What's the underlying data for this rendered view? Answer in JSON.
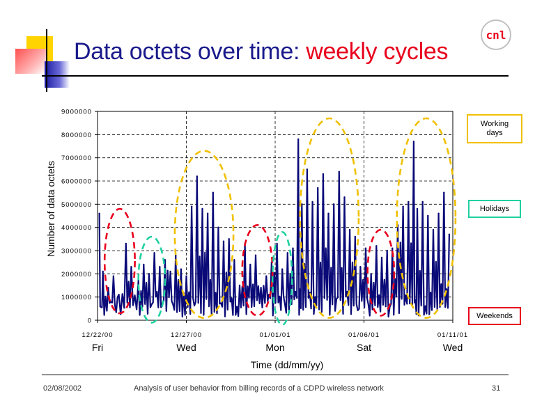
{
  "slide": {
    "title_main": "Data octets over time: ",
    "title_accent": "weekly cycles",
    "logo_text": "cnl",
    "footer": {
      "date": "02/08/2002",
      "caption": "Analysis of user behavior from billing records of a CDPD wireless network",
      "page_number": "31"
    }
  },
  "colors": {
    "title": "#1a1a8c",
    "accent": "#e8001c",
    "series": "#0a0a78",
    "working_days": "#f0c000",
    "holidays": "#20d0a0",
    "weekends": "#e8001c"
  },
  "legend": [
    {
      "key": "working",
      "label": "Working days",
      "color": "#f0c000"
    },
    {
      "key": "holidays",
      "label": "Holidays",
      "color": "#20d0a0"
    },
    {
      "key": "weekends",
      "label": "Weekends",
      "color": "#e8001c"
    }
  ],
  "chart_data": {
    "type": "line",
    "title": "",
    "xlabel": "Time (dd/mm/yy)",
    "ylabel": "Number of data octets",
    "ylim": [
      0,
      9000000
    ],
    "yticks": [
      "0",
      "1000000",
      "2000000",
      "3000000",
      "4000000",
      "5000000",
      "6000000",
      "7000000",
      "8000000",
      "9000000"
    ],
    "xlim_days": [
      0,
      20
    ],
    "xticks": [
      {
        "date": "12/22/00",
        "day": "Fri"
      },
      {
        "date": "12/27/00",
        "day": "Wed"
      },
      {
        "date": "01/01/01",
        "day": "Mon"
      },
      {
        "date": "01/06/01",
        "day": "Sat"
      },
      {
        "date": "01/11/01",
        "day": "Wed"
      }
    ],
    "grid": true,
    "series": [
      {
        "peaks": [
          [
            0.1,
            4600000
          ],
          [
            0.3,
            2100000
          ],
          [
            0.6,
            1400000
          ],
          [
            0.9,
            1900000
          ],
          [
            1.2,
            1100000
          ],
          [
            1.6,
            3300000
          ],
          [
            1.9,
            2300000
          ],
          [
            2.3,
            1700000
          ],
          [
            2.6,
            2400000
          ],
          [
            2.9,
            2000000
          ],
          [
            3.2,
            2900000
          ],
          [
            3.5,
            2300000
          ],
          [
            3.8,
            2600000
          ],
          [
            4.1,
            2100000
          ],
          [
            4.4,
            2800000
          ],
          [
            4.7,
            2200000
          ],
          [
            5.0,
            1900000
          ],
          [
            5.3,
            4900000
          ],
          [
            5.6,
            6200000
          ],
          [
            5.9,
            4800000
          ],
          [
            6.2,
            4600000
          ],
          [
            6.5,
            5500000
          ],
          [
            6.8,
            4000000
          ],
          [
            7.1,
            3400000
          ],
          [
            7.4,
            3500000
          ],
          [
            7.7,
            2600000
          ],
          [
            8.0,
            1500000
          ],
          [
            8.3,
            3300000
          ],
          [
            8.6,
            2400000
          ],
          [
            8.9,
            2800000
          ],
          [
            9.2,
            1400000
          ],
          [
            9.5,
            1900000
          ],
          [
            9.8,
            2500000
          ],
          [
            10.1,
            3300000
          ],
          [
            10.4,
            2200000
          ],
          [
            10.7,
            2900000
          ],
          [
            11.0,
            3100000
          ],
          [
            11.3,
            7800000
          ],
          [
            11.5,
            5000000
          ],
          [
            11.8,
            6500000
          ],
          [
            12.1,
            5100000
          ],
          [
            12.4,
            5700000
          ],
          [
            12.7,
            6300000
          ],
          [
            13.0,
            4600000
          ],
          [
            13.3,
            5000000
          ],
          [
            13.6,
            6400000
          ],
          [
            13.9,
            5300000
          ],
          [
            14.2,
            3900000
          ],
          [
            14.5,
            3600000
          ],
          [
            14.8,
            2300000
          ],
          [
            15.1,
            3100000
          ],
          [
            15.4,
            2000000
          ],
          [
            15.7,
            3200000
          ],
          [
            16.0,
            2700000
          ],
          [
            16.3,
            3000000
          ],
          [
            16.6,
            3100000
          ],
          [
            16.9,
            4100000
          ],
          [
            17.2,
            4900000
          ],
          [
            17.5,
            5100000
          ],
          [
            17.8,
            7700000
          ],
          [
            18.0,
            4800000
          ],
          [
            18.3,
            5100000
          ],
          [
            18.6,
            4500000
          ],
          [
            18.9,
            3900000
          ],
          [
            19.2,
            4600000
          ],
          [
            19.5,
            5500000
          ],
          [
            19.8,
            3700000
          ]
        ]
      }
    ],
    "annotations": [
      {
        "type": "weekends",
        "day_center": 1.25,
        "day_width": 1.7,
        "ymin": 300000,
        "ymax": 4800000
      },
      {
        "type": "holidays",
        "day_center": 3.05,
        "day_width": 1.5,
        "ymin": -100000,
        "ymax": 3600000
      },
      {
        "type": "working",
        "day_center": 6.0,
        "day_width": 3.3,
        "ymin": 100000,
        "ymax": 7300000
      },
      {
        "type": "weekends",
        "day_center": 9.0,
        "day_width": 1.7,
        "ymin": 200000,
        "ymax": 4100000
      },
      {
        "type": "holidays",
        "day_center": 10.4,
        "day_width": 1.1,
        "ymin": -200000,
        "ymax": 3800000
      },
      {
        "type": "working",
        "day_center": 13.05,
        "day_width": 3.3,
        "ymin": 100000,
        "ymax": 8700000
      },
      {
        "type": "weekends",
        "day_center": 15.95,
        "day_width": 1.5,
        "ymin": 200000,
        "ymax": 3900000
      },
      {
        "type": "working",
        "day_center": 18.5,
        "day_width": 3.3,
        "ymin": 100000,
        "ymax": 8700000
      }
    ]
  }
}
